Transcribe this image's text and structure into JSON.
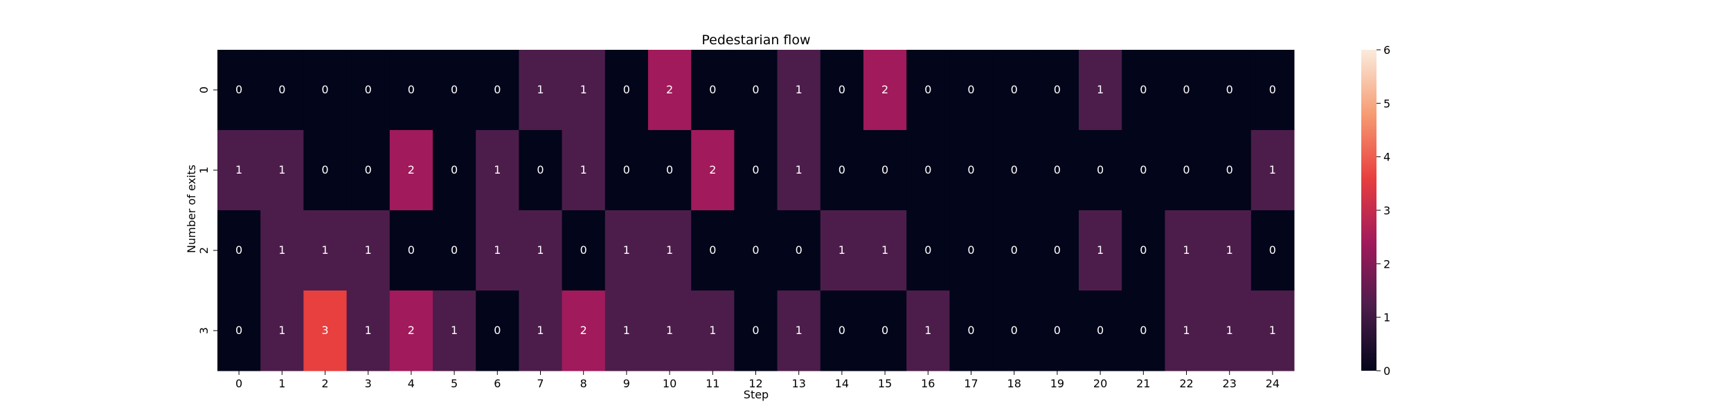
{
  "chart_data": {
    "type": "heatmap",
    "title": "Pedestarian flow",
    "xlabel": "Step",
    "ylabel": "Number of exits",
    "x_categories": [
      "0",
      "1",
      "2",
      "3",
      "4",
      "5",
      "6",
      "7",
      "8",
      "9",
      "10",
      "11",
      "12",
      "13",
      "14",
      "15",
      "16",
      "17",
      "18",
      "19",
      "20",
      "21",
      "22",
      "23",
      "24"
    ],
    "y_categories": [
      "0",
      "1",
      "2",
      "3"
    ],
    "values": [
      [
        0,
        0,
        0,
        0,
        0,
        0,
        0,
        1,
        1,
        0,
        2,
        0,
        0,
        1,
        0,
        2,
        0,
        0,
        0,
        0,
        1,
        0,
        0,
        0,
        0
      ],
      [
        1,
        1,
        0,
        0,
        2,
        0,
        1,
        0,
        1,
        0,
        0,
        2,
        0,
        1,
        0,
        0,
        0,
        0,
        0,
        0,
        0,
        0,
        0,
        0,
        1
      ],
      [
        0,
        1,
        1,
        1,
        0,
        0,
        1,
        1,
        0,
        1,
        1,
        0,
        0,
        0,
        1,
        1,
        0,
        0,
        0,
        0,
        1,
        0,
        1,
        1,
        0
      ],
      [
        0,
        1,
        3,
        1,
        2,
        1,
        0,
        1,
        2,
        1,
        1,
        1,
        0,
        1,
        0,
        0,
        1,
        0,
        0,
        0,
        0,
        0,
        1,
        1,
        1
      ]
    ],
    "annotated": true,
    "colormap": "rocket",
    "colorbar": {
      "range": [
        0,
        6
      ],
      "ticks": [
        "0",
        "1",
        "2",
        "3",
        "4",
        "5",
        "6"
      ]
    },
    "cell_colors": {
      "0": "#03051a",
      "1": "#4c1d4b",
      "2": "#a11a5b",
      "3": "#e83f3f"
    },
    "colormap_stops": [
      "#03051a",
      "#4c1d4b",
      "#a11a5b",
      "#e83f3f",
      "#f69c73",
      "#faebdd"
    ]
  }
}
